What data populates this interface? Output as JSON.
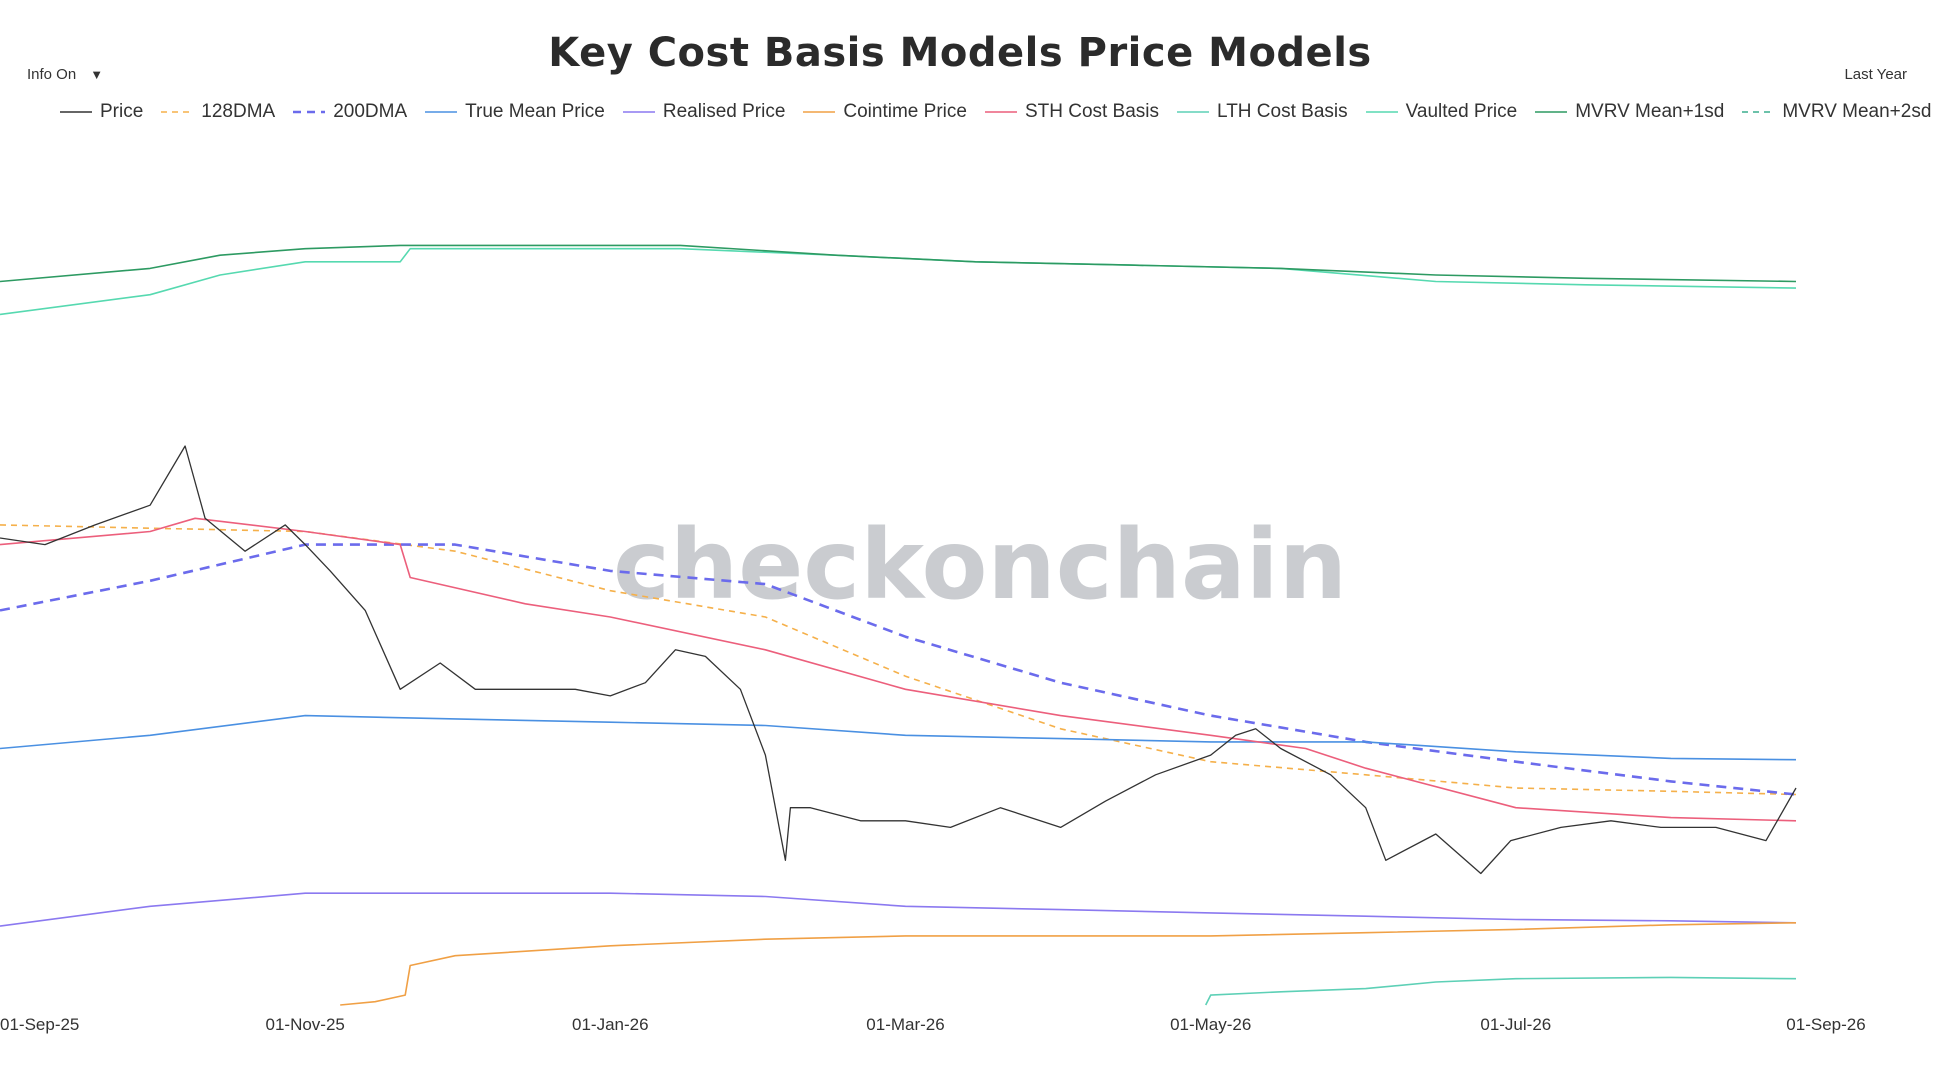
{
  "header": {
    "info_toggle": "Info On",
    "info_arrow": "▼",
    "range_label": "Last Year"
  },
  "watermark": "checkonchain",
  "chart_data": {
    "type": "line",
    "title": "Key Cost Basis Models Price Models",
    "xlabel": "",
    "ylabel": "",
    "x_ticks": [
      "01-Sep-25",
      "01-Nov-25",
      "01-Jan-26",
      "01-Mar-26",
      "01-May-26",
      "01-Jul-26",
      "01-Sep-26"
    ],
    "xlim": [
      "2025-09-01",
      "2026-09-01"
    ],
    "ylim": [
      40000,
      170000
    ],
    "y_ticks_visible": false,
    "grid": false,
    "legend_position": "top",
    "series": [
      {
        "name": "Price",
        "color": "#333333",
        "dash": "solid",
        "x": [
          "2025-09-01",
          "2025-09-10",
          "2025-09-20",
          "2025-10-01",
          "2025-10-08",
          "2025-10-12",
          "2025-10-20",
          "2025-10-28",
          "2025-11-01",
          "2025-11-06",
          "2025-11-13",
          "2025-11-20",
          "2025-11-28",
          "2025-12-05",
          "2025-12-15",
          "2025-12-25",
          "2026-01-01",
          "2026-01-08",
          "2026-01-14",
          "2026-01-20",
          "2026-01-27",
          "2026-02-01",
          "2026-02-05",
          "2026-02-06",
          "2026-02-10",
          "2026-02-20",
          "2026-03-01",
          "2026-03-10",
          "2026-03-20",
          "2026-04-01",
          "2026-04-10",
          "2026-04-20",
          "2026-05-01",
          "2026-05-06",
          "2026-05-10",
          "2026-05-15",
          "2026-05-25",
          "2026-06-01",
          "2026-06-05",
          "2026-06-15",
          "2026-06-24",
          "2026-06-30",
          "2026-07-10",
          "2026-07-20",
          "2026-07-30",
          "2026-08-10",
          "2026-08-20",
          "2026-08-26"
        ],
        "values": [
          111000,
          110000,
          113000,
          116000,
          125000,
          114000,
          109000,
          113000,
          110000,
          106000,
          100000,
          88000,
          92000,
          88000,
          88000,
          88000,
          87000,
          89000,
          94000,
          93000,
          88000,
          78000,
          62000,
          70000,
          70000,
          68000,
          68000,
          67000,
          70000,
          67000,
          71000,
          75000,
          78000,
          81000,
          82000,
          79000,
          75000,
          70000,
          62000,
          66000,
          60000,
          65000,
          67000,
          68000,
          67000,
          67000,
          65000,
          73000
        ]
      },
      {
        "name": "128DMA",
        "color": "#f5b04a",
        "dash": "dashed",
        "x": [
          "2025-09-01",
          "2025-10-01",
          "2025-11-01",
          "2025-12-01",
          "2026-01-01",
          "2026-02-01",
          "2026-03-01",
          "2026-04-01",
          "2026-05-01",
          "2026-06-01",
          "2026-07-01",
          "2026-08-01",
          "2026-08-26"
        ],
        "values": [
          113000,
          112500,
          112000,
          109000,
          103000,
          99000,
          90000,
          82000,
          77000,
          75000,
          73000,
          72500,
          72000
        ]
      },
      {
        "name": "200DMA",
        "color": "#6b6bec",
        "dash": "dashed-thick",
        "x": [
          "2025-09-01",
          "2025-10-01",
          "2025-11-01",
          "2025-12-01",
          "2026-01-01",
          "2026-02-01",
          "2026-03-01",
          "2026-04-01",
          "2026-05-01",
          "2026-06-01",
          "2026-07-01",
          "2026-08-01",
          "2026-08-26"
        ],
        "values": [
          100000,
          104500,
          110000,
          110000,
          106000,
          104000,
          96000,
          89000,
          84000,
          80000,
          77000,
          74000,
          72000
        ]
      },
      {
        "name": "True Mean Price",
        "color": "#4a90e2",
        "dash": "solid",
        "x": [
          "2025-09-01",
          "2025-10-01",
          "2025-11-01",
          "2025-12-01",
          "2026-01-01",
          "2026-02-01",
          "2026-03-01",
          "2026-04-01",
          "2026-05-01",
          "2026-06-01",
          "2026-07-01",
          "2026-08-01",
          "2026-08-26"
        ],
        "values": [
          79000,
          81000,
          84000,
          83500,
          83000,
          82500,
          81000,
          80500,
          80000,
          80000,
          78500,
          77500,
          77300
        ]
      },
      {
        "name": "Realised Price",
        "color": "#8b79f0",
        "dash": "solid",
        "x": [
          "2025-09-01",
          "2025-10-01",
          "2025-11-01",
          "2025-12-01",
          "2026-01-01",
          "2026-02-01",
          "2026-03-01",
          "2026-04-01",
          "2026-05-01",
          "2026-06-01",
          "2026-07-01",
          "2026-08-01",
          "2026-08-26"
        ],
        "values": [
          52000,
          55000,
          57000,
          57000,
          57000,
          56500,
          55000,
          54500,
          54000,
          53500,
          53000,
          52800,
          52500
        ]
      },
      {
        "name": "Cointime Price",
        "color": "#f0a045",
        "dash": "solid",
        "x": [
          "2025-11-08",
          "2025-11-15",
          "2025-11-21",
          "2025-11-22",
          "2025-12-01",
          "2026-01-01",
          "2026-02-01",
          "2026-03-01",
          "2026-04-01",
          "2026-05-01",
          "2026-06-01",
          "2026-07-01",
          "2026-08-01",
          "2026-08-26"
        ],
        "values": [
          40000,
          40500,
          41500,
          46000,
          47500,
          49000,
          50000,
          50500,
          50500,
          50500,
          51000,
          51500,
          52200,
          52500
        ]
      },
      {
        "name": "STH Cost Basis",
        "color": "#ec5f7c",
        "dash": "solid",
        "x": [
          "2025-09-01",
          "2025-10-01",
          "2025-10-10",
          "2025-11-01",
          "2025-11-20",
          "2025-11-22",
          "2025-12-15",
          "2026-01-01",
          "2026-02-01",
          "2026-03-01",
          "2026-04-01",
          "2026-05-01",
          "2026-05-20",
          "2026-06-01",
          "2026-07-01",
          "2026-08-01",
          "2026-08-26"
        ],
        "values": [
          110000,
          112000,
          114000,
          112000,
          110000,
          105000,
          101000,
          99000,
          94000,
          88000,
          84000,
          81000,
          79000,
          76000,
          70000,
          68500,
          68000
        ]
      },
      {
        "name": "LTH Cost Basis",
        "color": "#5dd0b6",
        "dash": "solid",
        "x": [
          "2026-04-30",
          "2026-05-01",
          "2026-05-15",
          "2026-06-01",
          "2026-06-15",
          "2026-07-01",
          "2026-08-01",
          "2026-08-26"
        ],
        "values": [
          40000,
          41500,
          42000,
          42500,
          43500,
          44000,
          44200,
          44000
        ]
      },
      {
        "name": "Vaulted Price",
        "color": "#56d9b0",
        "dash": "solid",
        "x": [
          "2025-09-01",
          "2025-10-01",
          "2025-10-15",
          "2025-11-01",
          "2025-11-20",
          "2025-11-22",
          "2025-12-15",
          "2026-01-15",
          "2026-02-15",
          "2026-03-15",
          "2026-04-15",
          "2026-05-15",
          "2026-06-15",
          "2026-07-15",
          "2026-08-26"
        ],
        "values": [
          145000,
          148000,
          151000,
          153000,
          153000,
          155000,
          155000,
          155000,
          154000,
          153000,
          152500,
          152000,
          150000,
          149500,
          149000
        ]
      },
      {
        "name": "MVRV Mean+1sd",
        "color": "#2d9a62",
        "dash": "solid",
        "x": [
          "2025-09-01",
          "2025-10-01",
          "2025-10-15",
          "2025-11-01",
          "2025-11-20",
          "2025-12-15",
          "2026-01-15",
          "2026-02-15",
          "2026-03-15",
          "2026-04-15",
          "2026-05-15",
          "2026-06-15",
          "2026-07-15",
          "2026-08-26"
        ],
        "values": [
          150000,
          152000,
          154000,
          155000,
          155500,
          155500,
          155500,
          154000,
          153000,
          152500,
          152000,
          151000,
          150500,
          150000
        ]
      },
      {
        "name": "MVRV Mean+2sd",
        "color": "#3cae8e",
        "dash": "dashed",
        "x": [],
        "values": []
      }
    ]
  }
}
